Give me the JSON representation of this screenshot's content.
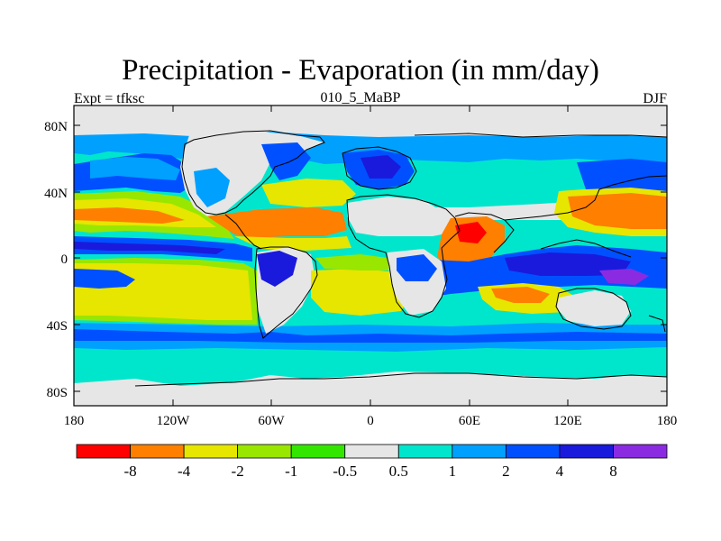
{
  "title": "Precipitation - Evaporation (in mm/day)",
  "subtitle_left": "Expt = tfksc",
  "subtitle_center": "010_5_MaBP",
  "subtitle_right": "DJF",
  "y_ticks": [
    "80N",
    "40N",
    "0",
    "40S",
    "80S"
  ],
  "x_ticks": [
    "180",
    "120W",
    "60W",
    "0",
    "60E",
    "120E",
    "180"
  ],
  "colorbar": {
    "colors": [
      "#ff0000",
      "#ff7f00",
      "#e6e600",
      "#99e600",
      "#33e600",
      "#e6e6e6",
      "#00e6cc",
      "#00a0ff",
      "#0050ff",
      "#1a1adc",
      "#8a2be2"
    ],
    "labels": [
      "-8",
      "-4",
      "-2",
      "-1",
      "-0.5",
      "0.5",
      "1",
      "2",
      "4",
      "8"
    ]
  },
  "legend_classes": {
    "neutral": "#e6e6e6",
    "cyan": "#00e6cc",
    "lightblue": "#00a0ff",
    "blue": "#0050ff",
    "darkblue": "#1a1adc",
    "violet": "#8a2be2",
    "red": "#ff0000",
    "orange": "#ff7f00",
    "yellow": "#e6e600",
    "lime": "#99e600",
    "green": "#33e600"
  }
}
